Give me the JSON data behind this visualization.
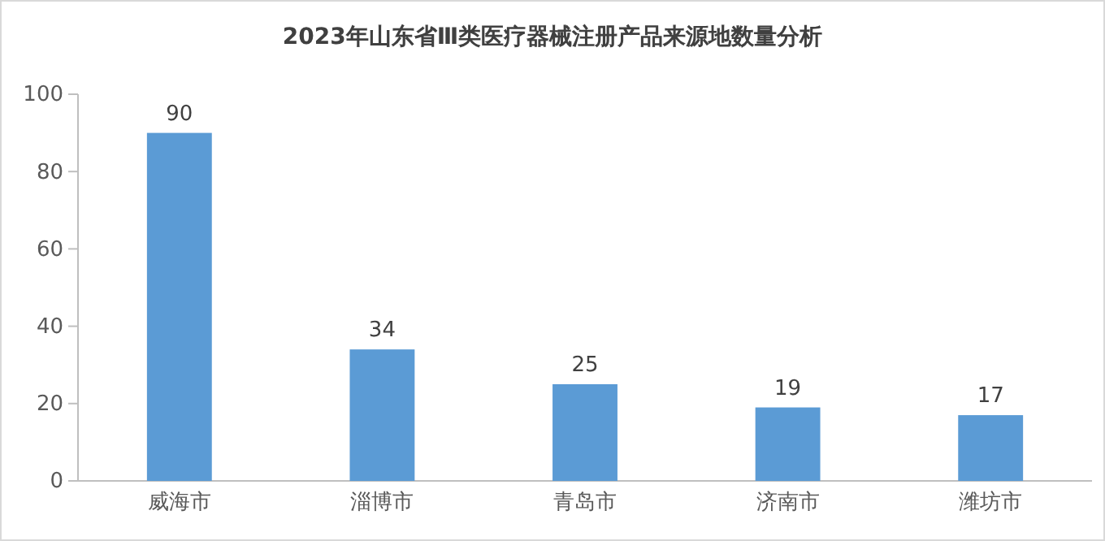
{
  "chart_data": {
    "type": "bar",
    "title": "2023年山东省Ⅲ类医疗器械注册产品来源地数量分析",
    "categories": [
      "威海市",
      "淄博市",
      "青岛市",
      "济南市",
      "潍坊市"
    ],
    "values": [
      90,
      34,
      25,
      19,
      17
    ],
    "color": "#5b9bd5",
    "ylim": [
      0,
      100
    ],
    "yticks": [
      0,
      20,
      40,
      60,
      80,
      100
    ],
    "grid": false,
    "data_labels": true
  }
}
